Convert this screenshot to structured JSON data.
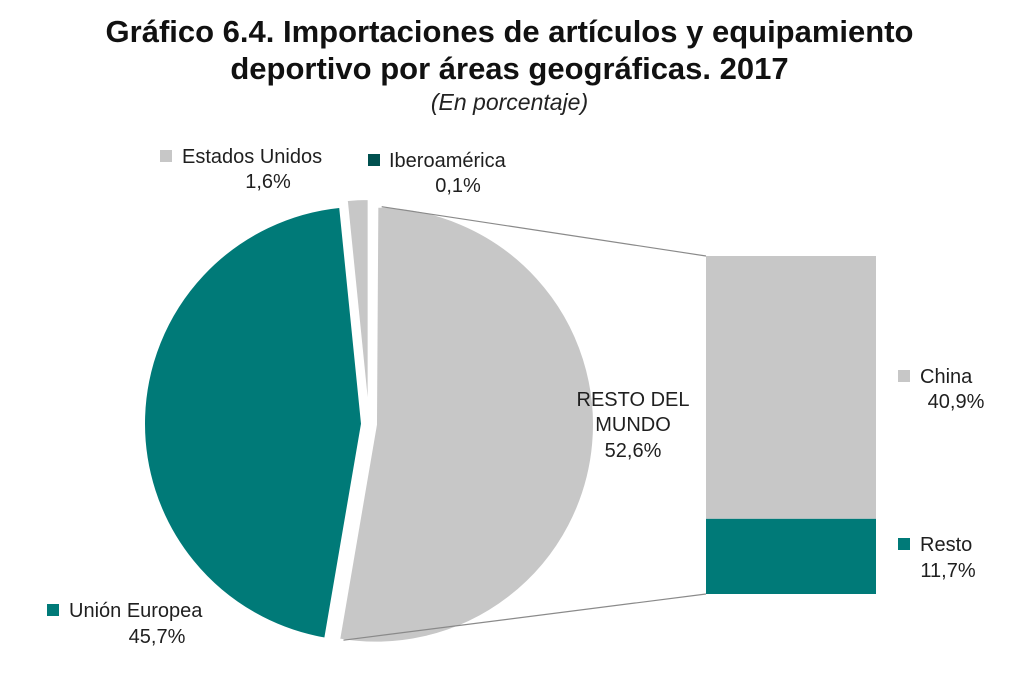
{
  "title": {
    "line1": "Gráfico 6.4. Importaciones de artículos y equipamiento",
    "line2": "deportivo por áreas geográficas. 2017"
  },
  "subtitle": "(En porcentaje)",
  "colors": {
    "teal": "#007a78",
    "dark_teal": "#00504f",
    "gray": "#c7c7c7",
    "connector": "#8a8a8a"
  },
  "chart_data": {
    "type": "pie",
    "subtype": "bar-of-pie",
    "unit": "%",
    "slices": [
      {
        "name": "RESTO DEL MUNDO",
        "name_lines": [
          "RESTO DEL",
          "MUNDO"
        ],
        "value": 52.6,
        "label": "52,6%",
        "color": "#c7c7c7"
      },
      {
        "name": "Unión Europea",
        "value": 45.7,
        "label": "45,7%",
        "color": "#007a78"
      },
      {
        "name": "Estados Unidos",
        "value": 1.6,
        "label": "1,6%",
        "color": "#c7c7c7"
      },
      {
        "name": "Iberoamérica",
        "value": 0.1,
        "label": "0,1%",
        "color": "#00504f"
      }
    ],
    "breakdown": {
      "of": "RESTO DEL MUNDO",
      "segments": [
        {
          "name": "China",
          "value": 40.9,
          "label": "40,9%",
          "color": "#c7c7c7"
        },
        {
          "name": "Resto",
          "value": 11.7,
          "label": "11,7%",
          "color": "#007a78"
        }
      ]
    }
  }
}
